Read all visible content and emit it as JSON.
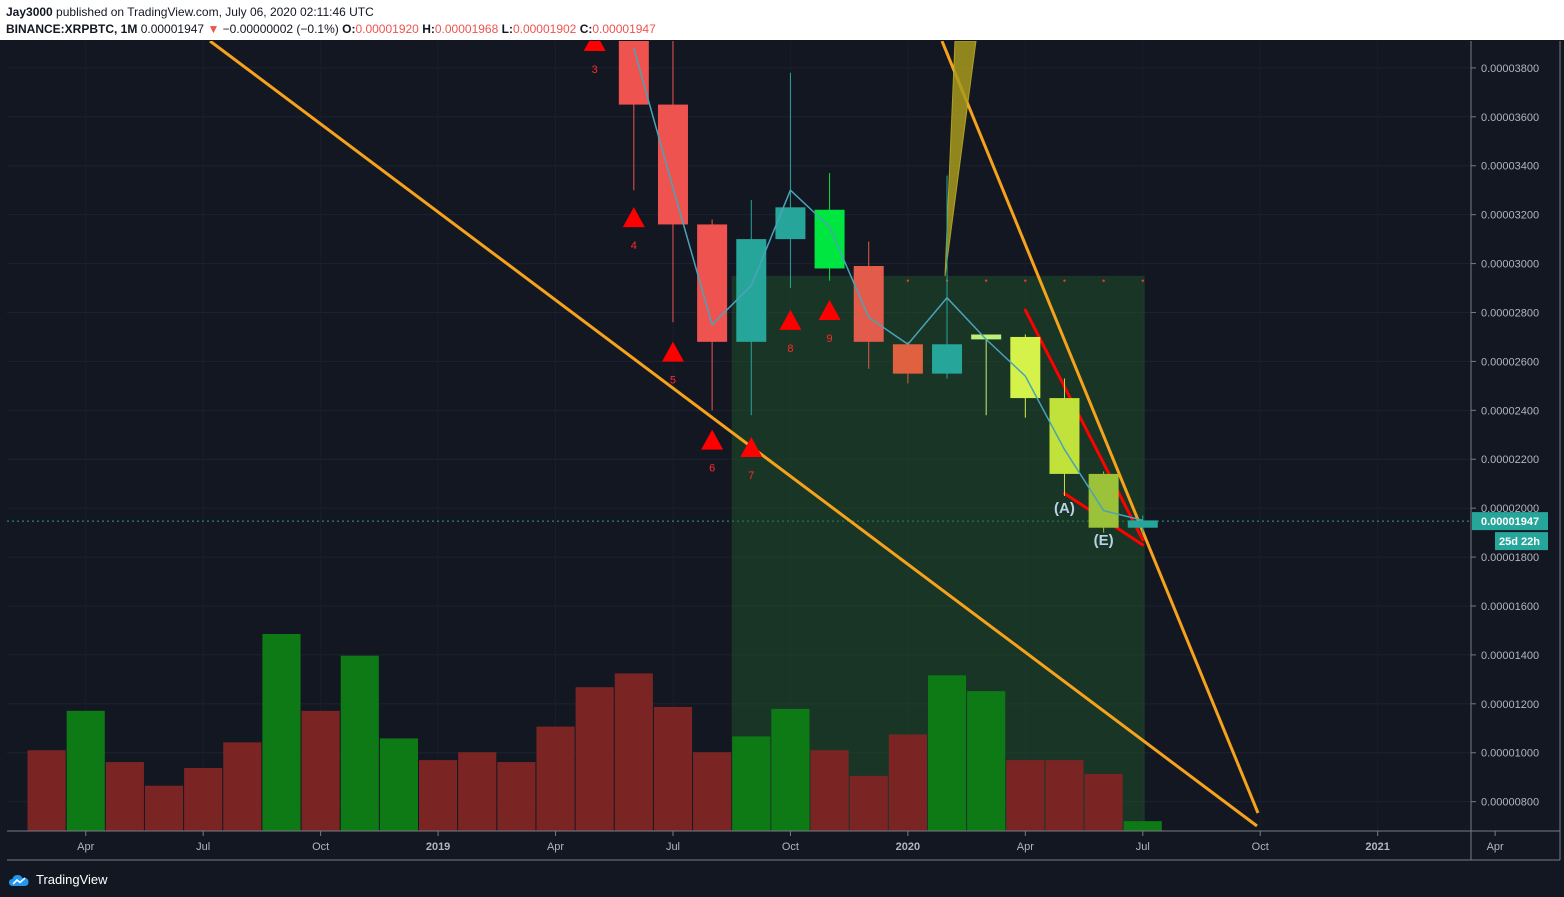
{
  "header": {
    "author": "Jay3000",
    "published_text": " published on TradingView.com, July 06, 2020 02:11:46 UTC",
    "symbol": "BINANCE:XRPBTC, 1M",
    "last": "0.00001947",
    "change_arrow": "▼",
    "change": "−0.00000002 (−0.1%)",
    "o_label": "O:",
    "o_value": "0.00001920",
    "h_label": "H:",
    "h_value": "0.00001968",
    "l_label": "L:",
    "l_value": "0.00001902",
    "c_label": "C:",
    "c_value": "0.00001947"
  },
  "footer": {
    "brand": "TradingView",
    "icon": "tradingview-cloud-icon"
  },
  "colors": {
    "background": "#131722",
    "bull_candle": "#26a69a",
    "bear_candle": "#ef5350",
    "vol_bull": "#0e7a16",
    "vol_bear": "#7b2424",
    "trend_orange": "#f7a21b",
    "signal_red": "#ff0000",
    "price_tag": "#26a69a"
  },
  "chart_data": {
    "type": "candlestick",
    "symbol": "BINANCE:XRPBTC",
    "interval": "1M",
    "y_axis": {
      "ticks": [
        "0.00000800",
        "0.00001000",
        "0.00001200",
        "0.00001400",
        "0.00001600",
        "0.00001800",
        "0.00002000",
        "0.00002200",
        "0.00002400",
        "0.00002600",
        "0.00002800",
        "0.00003000",
        "0.00003200",
        "0.00003400",
        "0.00003600",
        "0.00003800"
      ],
      "range": [
        6.8e-06,
        3.91e-05
      ]
    },
    "x_axis": {
      "ticks": [
        "Apr",
        "Jul",
        "Oct",
        "2019",
        "Apr",
        "Jul",
        "Oct",
        "2020",
        "Apr",
        "Jul",
        "Oct",
        "2021",
        "Apr"
      ],
      "range": [
        "2018-03",
        "2021-04"
      ]
    },
    "last_price_tag": "0.00001947",
    "countdown_tag": "25d 22h",
    "candles": [
      {
        "month": "2019-06",
        "open": 4.05e-05,
        "high": 4.15e-05,
        "low": 3.3e-05,
        "close": 3.65e-05,
        "color": "#ef5350"
      },
      {
        "month": "2019-07",
        "open": 3.65e-05,
        "high": 3.95e-05,
        "low": 2.76e-05,
        "close": 3.16e-05,
        "color": "#ef5350"
      },
      {
        "month": "2019-08",
        "open": 3.16e-05,
        "high": 3.18e-05,
        "low": 2.4e-05,
        "close": 2.68e-05,
        "color": "#ef5350"
      },
      {
        "month": "2019-09",
        "open": 2.68e-05,
        "high": 3.26e-05,
        "low": 2.38e-05,
        "close": 3.1e-05,
        "color": "#26a69a"
      },
      {
        "month": "2019-10",
        "open": 3.1e-05,
        "high": 3.78e-05,
        "low": 2.9e-05,
        "close": 3.23e-05,
        "color": "#26a69a"
      },
      {
        "month": "2019-11",
        "open": 2.98e-05,
        "high": 3.37e-05,
        "low": 2.93e-05,
        "close": 3.22e-05,
        "color": "#00e640"
      },
      {
        "month": "2019-12",
        "open": 2.99e-05,
        "high": 3.09e-05,
        "low": 2.57e-05,
        "close": 2.68e-05,
        "color": "#e35b4b"
      },
      {
        "month": "2020-01",
        "open": 2.67e-05,
        "high": 2.68e-05,
        "low": 2.51e-05,
        "close": 2.55e-05,
        "color": "#e0613f"
      },
      {
        "month": "2020-02",
        "open": 2.55e-05,
        "high": 3.36e-05,
        "low": 2.53e-05,
        "close": 2.67e-05,
        "color": "#26a69a"
      },
      {
        "month": "2020-03",
        "open": 2.69e-05,
        "high": 2.7e-05,
        "low": 2.38e-05,
        "close": 2.71e-05,
        "color": "#bdf07a"
      },
      {
        "month": "2020-04",
        "open": 2.7e-05,
        "high": 2.71e-05,
        "low": 2.37e-05,
        "close": 2.45e-05,
        "color": "#d4f24a"
      },
      {
        "month": "2020-05",
        "open": 2.45e-05,
        "high": 2.53e-05,
        "low": 2.05e-05,
        "close": 2.14e-05,
        "color": "#c0e23a"
      },
      {
        "month": "2020-06",
        "open": 2.14e-05,
        "high": 2.15e-05,
        "low": 1.9e-05,
        "close": 1.92e-05,
        "color": "#9cc23a"
      },
      {
        "month": "2020-07",
        "open": 1.92e-05,
        "high": 1.97e-05,
        "low": 1.9e-05,
        "close": 1.95e-05,
        "color": "#26a69a"
      }
    ],
    "moving_average": {
      "months": [
        "2019-06",
        "2019-07",
        "2019-08",
        "2019-09",
        "2019-10",
        "2019-11",
        "2019-12",
        "2020-01",
        "2020-02",
        "2020-03",
        "2020-04",
        "2020-05",
        "2020-06",
        "2020-07"
      ],
      "values": [
        3.88e-05,
        3.31e-05,
        2.75e-05,
        2.91e-05,
        3.3e-05,
        3.15e-05,
        2.78e-05,
        2.67e-05,
        2.86e-05,
        2.69e-05,
        2.54e-05,
        2.24e-05,
        1.99e-05,
        1.95e-05
      ]
    },
    "volume": {
      "months": [
        "2018-03",
        "2018-04",
        "2018-05",
        "2018-06",
        "2018-07",
        "2018-08",
        "2018-09",
        "2018-10",
        "2018-11",
        "2018-12",
        "2019-01",
        "2019-02",
        "2019-03",
        "2019-04",
        "2019-05",
        "2019-06",
        "2019-07",
        "2019-08",
        "2019-09",
        "2019-10",
        "2019-11",
        "2019-12",
        "2020-01",
        "2020-02",
        "2020-03",
        "2020-04",
        "2020-05",
        "2020-06",
        "2020-07"
      ],
      "values": [
        0.41,
        0.61,
        0.35,
        0.23,
        0.32,
        0.45,
        1.0,
        0.61,
        0.89,
        0.47,
        0.36,
        0.4,
        0.35,
        0.53,
        0.73,
        0.8,
        0.63,
        0.4,
        0.48,
        0.62,
        0.41,
        0.28,
        0.49,
        0.79,
        0.71,
        0.36,
        0.36,
        0.29,
        0.05
      ],
      "colors": [
        "bear",
        "bull",
        "bear",
        "bear",
        "bear",
        "bear",
        "bull",
        "bear",
        "bull",
        "bull",
        "bear",
        "bear",
        "bear",
        "bear",
        "bear",
        "bear",
        "bear",
        "bear",
        "bull",
        "bull",
        "bear",
        "bear",
        "bear",
        "bull",
        "bull",
        "bear",
        "bear",
        "bear",
        "bull"
      ]
    },
    "signal_triangles": [
      {
        "month": "2019-05",
        "price": 3.91e-05,
        "label": "3"
      },
      {
        "month": "2019-06",
        "price": 3.19e-05,
        "label": "4"
      },
      {
        "month": "2019-07",
        "price": 2.64e-05,
        "label": "5"
      },
      {
        "month": "2019-08",
        "price": 2.28e-05,
        "label": "6"
      },
      {
        "month": "2019-09",
        "price": 2.25e-05,
        "label": "7"
      },
      {
        "month": "2019-10",
        "price": 2.77e-05,
        "label": "8"
      },
      {
        "month": "2019-11",
        "price": 2.81e-05,
        "label": "9"
      }
    ],
    "wave_labels": [
      {
        "text": "(A)",
        "month": "2020-05",
        "price": 1.98e-05
      },
      {
        "text": "(E)",
        "month": "2020-06",
        "price": 1.85e-05
      }
    ],
    "trendlines": {
      "lower_support": {
        "from": {
          "month": "2018-08",
          "price": 3.93e-05
        },
        "to": {
          "month": "2020-10",
          "price": 7e-06
        }
      },
      "upper_resistance": {
        "from": {
          "month": "2020-02",
          "price": 3.93e-05
        },
        "to": {
          "month": "2020-10",
          "price": 7.4e-06
        }
      },
      "wedge_upper": {
        "from": {
          "month": "2020-04",
          "price": 2.81e-05
        },
        "to": {
          "month": "2020-07",
          "price": 1.87e-05
        }
      },
      "wedge_lower": {
        "from": {
          "month": "2020-05",
          "price": 2.06e-05
        },
        "to": {
          "month": "2020-07",
          "price": 1.85e-05
        }
      }
    },
    "dot_row_price": 2.93e-05
  }
}
